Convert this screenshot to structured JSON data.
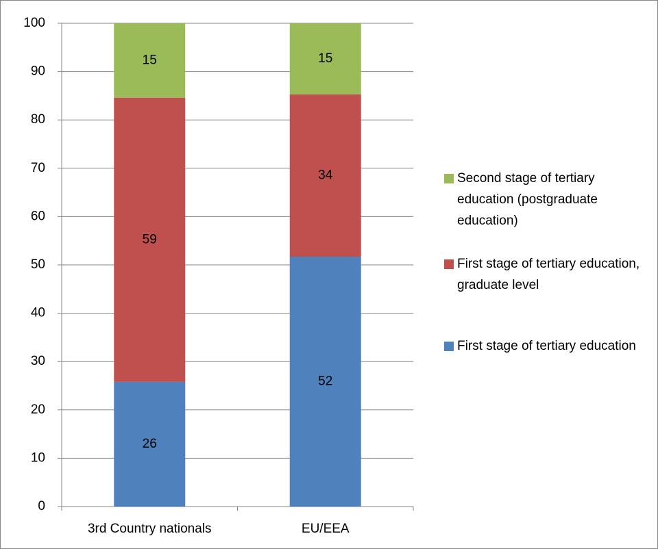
{
  "chart_data": {
    "type": "stacked_bar",
    "categories": [
      "3rd Country nationals",
      "EU/EEA"
    ],
    "series": [
      {
        "name": "First stage of tertiary education",
        "color": "#4f81bd",
        "values": [
          25.8,
          51.7
        ],
        "value_labels": [
          "26",
          "52"
        ]
      },
      {
        "name": "First stage of tertiary education, graduate level",
        "color": "#c0504d",
        "values": [
          58.8,
          33.6
        ],
        "value_labels": [
          "59",
          "34"
        ]
      },
      {
        "name": "Second stage of tertiary education (postgraduate education)",
        "color": "#9bbb59",
        "values": [
          15.4,
          14.7
        ],
        "value_labels": [
          "15",
          "15"
        ]
      }
    ],
    "ylim": [
      0,
      100
    ],
    "yticks": [
      0,
      10,
      20,
      30,
      40,
      50,
      60,
      70,
      80,
      90,
      100
    ],
    "grid": true,
    "legend": "right"
  }
}
